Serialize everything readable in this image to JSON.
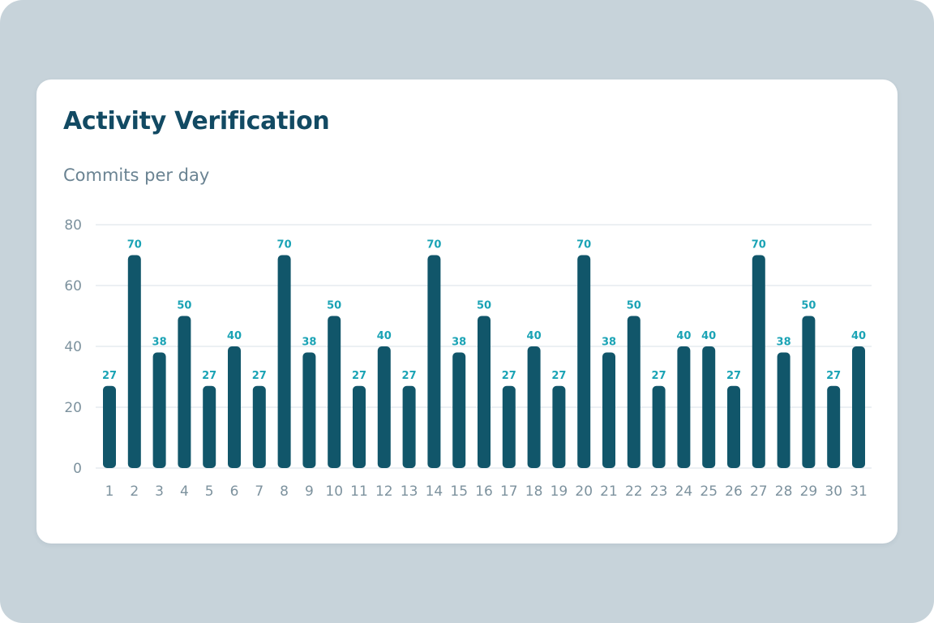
{
  "page": {
    "title": "Activity Verification",
    "subtitle": "Commits per day"
  },
  "colors": {
    "background": "#c7d3da",
    "card": "#ffffff",
    "title": "#124a63",
    "bar": "#11566a",
    "data_label": "#1aa3b5",
    "axis_text": "#7d929e",
    "grid": "#e6ecef"
  },
  "chart_data": {
    "type": "bar",
    "title": "",
    "subtitle": "Commits per day",
    "xlabel": "",
    "ylabel": "",
    "ylim": [
      0,
      80
    ],
    "yticks": [
      0,
      20,
      40,
      60,
      80
    ],
    "grid": true,
    "legend": "none",
    "categories": [
      "1",
      "2",
      "3",
      "4",
      "5",
      "6",
      "7",
      "8",
      "9",
      "10",
      "11",
      "12",
      "13",
      "14",
      "15",
      "16",
      "17",
      "18",
      "19",
      "20",
      "21",
      "22",
      "23",
      "24",
      "25",
      "26",
      "27",
      "28",
      "29",
      "30",
      "31"
    ],
    "values": [
      27,
      70,
      38,
      50,
      27,
      40,
      27,
      70,
      38,
      50,
      27,
      40,
      27,
      70,
      38,
      50,
      27,
      40,
      27,
      70,
      38,
      50,
      27,
      40,
      40,
      27,
      70,
      38,
      50,
      27,
      40
    ]
  }
}
